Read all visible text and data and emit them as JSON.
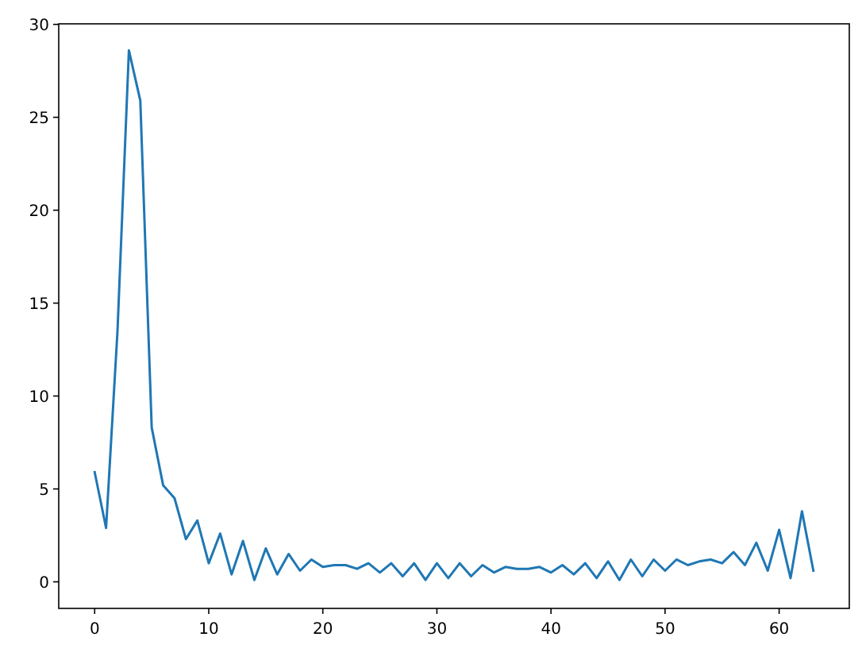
{
  "chart_data": {
    "type": "line",
    "x": [
      0,
      1,
      2,
      3,
      4,
      5,
      6,
      7,
      8,
      9,
      10,
      11,
      12,
      13,
      14,
      15,
      16,
      17,
      18,
      19,
      20,
      21,
      22,
      23,
      24,
      25,
      26,
      27,
      28,
      29,
      30,
      31,
      32,
      33,
      34,
      35,
      36,
      37,
      38,
      39,
      40,
      41,
      42,
      43,
      44,
      45,
      46,
      47,
      48,
      49,
      50,
      51,
      52,
      53,
      54,
      55,
      56,
      57,
      58,
      59,
      60,
      61,
      62,
      63
    ],
    "series": [
      {
        "color": "#1f77b4",
        "values": [
          5.9,
          2.9,
          13.5,
          28.6,
          25.9,
          8.3,
          5.2,
          4.5,
          2.3,
          3.3,
          1.0,
          2.6,
          0.4,
          2.2,
          0.1,
          1.8,
          0.4,
          1.5,
          0.6,
          1.2,
          0.8,
          0.9,
          0.9,
          0.7,
          1.0,
          0.5,
          1.0,
          0.3,
          1.0,
          0.1,
          1.0,
          0.2,
          1.0,
          0.3,
          0.9,
          0.5,
          0.8,
          0.7,
          0.7,
          0.8,
          0.5,
          0.9,
          0.4,
          1.0,
          0.2,
          1.1,
          0.1,
          1.2,
          0.3,
          1.2,
          0.6,
          1.2,
          0.9,
          1.1,
          1.2,
          1.0,
          1.6,
          0.9,
          2.1,
          0.6,
          2.8,
          0.2,
          3.8,
          0.6
        ]
      }
    ],
    "xlim": [
      -3.15,
      66.15
    ],
    "ylim": [
      -1.43,
      30.03
    ],
    "xticks": [
      0,
      10,
      20,
      30,
      40,
      50,
      60
    ],
    "yticks": [
      0,
      5,
      10,
      15,
      20,
      25,
      30
    ]
  }
}
